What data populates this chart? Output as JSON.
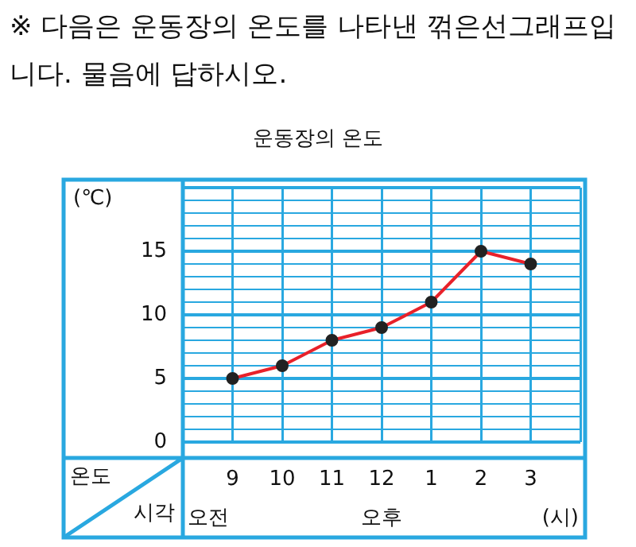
{
  "chart_data": {
    "type": "line",
    "title": "운동장의 온도",
    "xlabel": "(시)",
    "ylabel": "(℃)",
    "annotations": [
      "※ 다음은 운동장의 온도를 나타낸 꺾은선그래프입니다. 물음에 답하시오.",
      "온도",
      "시각",
      "오전",
      "오후"
    ],
    "categories": [
      "9",
      "10",
      "11",
      "12",
      "1",
      "2",
      "3"
    ],
    "series": [
      {
        "color": "#e8212a",
        "values": [
          5,
          6,
          8,
          9,
          11,
          15,
          14
        ]
      }
    ],
    "ylim": [
      0,
      20
    ],
    "yticks": [
      0,
      {
        "value": 1,
        "label": null
      },
      {
        "value": 2,
        "label": null
      },
      {
        "value": 3,
        "label": null
      },
      {
        "value": 4,
        "label": null
      },
      5,
      {
        "value": 6,
        "label": null
      },
      {
        "value": 7,
        "label": null
      },
      {
        "value": 8,
        "label": null
      },
      {
        "value": 9,
        "label": null
      },
      10,
      {
        "value": 11,
        "label": null
      },
      {
        "value": 12,
        "label": null
      },
      {
        "value": 13,
        "label": null
      },
      {
        "value": 14,
        "label": null
      },
      15,
      {
        "value": 16,
        "label": null
      },
      {
        "value": 17,
        "label": null
      },
      {
        "value": 18,
        "label": null
      },
      {
        "value": 19,
        "label": null
      },
      {
        "value": 20,
        "label": null
      }
    ],
    "grid": true,
    "marker": "circle",
    "line_style": "solid",
    "legend": false
  }
}
